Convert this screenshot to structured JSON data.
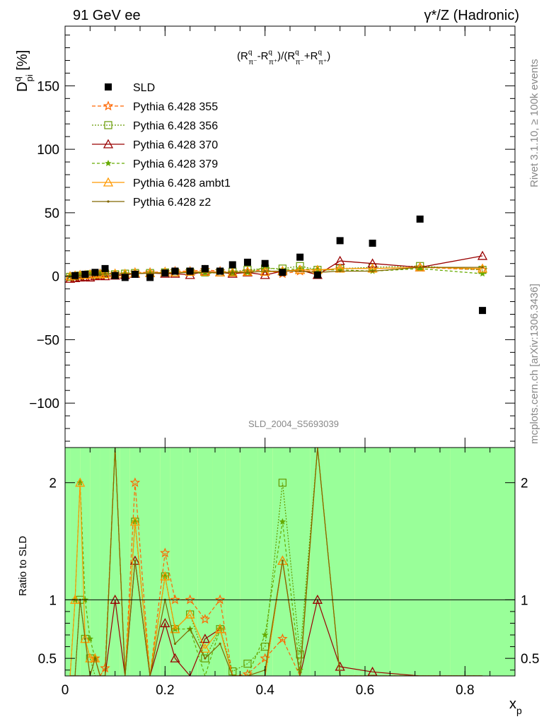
{
  "header": {
    "left": "91 GeV ee",
    "right": "γ*/Z (Hadronic)"
  },
  "side_text": {
    "top": "Rivet 3.1.10, ≥ 100k events",
    "bottom": "mcplots.cern.ch [arXiv:1306.3436]"
  },
  "watermark": "SLD_2004_S5693039",
  "ylabel_base": "D",
  "ylabel_sup": "q",
  "ylabel_sub": "pi",
  "ylabel_unit": " [%]",
  "ratio_ylabel": "Ratio to SLD",
  "xlabel_base": "x",
  "xlabel_sub": "p",
  "formula": {
    "open": "(R",
    "q1": "q",
    "pim": "π⁻",
    "minus": "-R",
    "q2": "q",
    "pip": "π⁺",
    "mid": ")/(R",
    "q3": "q",
    "pim2": "π⁻",
    "plus": "+R",
    "q4": "q",
    "pip2": "π⁺",
    "close": ")"
  },
  "chart_data": {
    "type": "scatter",
    "xlabel": "x_p",
    "ylabel": "D^q_pi [%]",
    "xlim": [
      0,
      0.9
    ],
    "ylim": [
      -135,
      197
    ],
    "x_ticks": [
      0,
      0.2,
      0.4,
      0.6,
      0.8
    ],
    "y_ticks": [
      -100,
      -50,
      0,
      50,
      100,
      150
    ],
    "ratio_ylim": [
      0.35,
      2.3
    ],
    "ratio_ticks": [
      0.5,
      1,
      2
    ],
    "legend_position": "top-left",
    "reference": {
      "name": "SLD",
      "x": [
        0.02,
        0.04,
        0.06,
        0.08,
        0.1,
        0.12,
        0.14,
        0.17,
        0.2,
        0.22,
        0.25,
        0.28,
        0.31,
        0.335,
        0.365,
        0.4,
        0.435,
        0.47,
        0.505,
        0.55,
        0.615,
        0.71,
        0.835
      ],
      "y": [
        0.5,
        1.5,
        3,
        6,
        0.5,
        -1,
        1.5,
        -1,
        2.5,
        4,
        4,
        6,
        4,
        9,
        11,
        10,
        3,
        15,
        1,
        28,
        26,
        45,
        -27
      ]
    },
    "ratio_bands": [
      {
        "x0": 0.0,
        "x1": 0.01,
        "inner": [
          0.35,
          2.3
        ],
        "outer": [
          0.35,
          2.3
        ]
      },
      {
        "x0": 0.01,
        "x1": 0.03,
        "inner": [
          0.35,
          2.3
        ],
        "outer": [
          0.35,
          2.3
        ]
      },
      {
        "x0": 0.03,
        "x1": 0.05,
        "inner": [
          0.35,
          2.3
        ],
        "outer": [
          0.35,
          2.3
        ]
      },
      {
        "x0": 0.05,
        "x1": 0.07,
        "inner": [
          0.35,
          2.3
        ],
        "outer": [
          0.35,
          2.3
        ]
      },
      {
        "x0": 0.07,
        "x1": 0.09,
        "inner": [
          0.35,
          2.3
        ],
        "outer": [
          0.35,
          2.3
        ]
      },
      {
        "x0": 0.09,
        "x1": 0.11,
        "inner": [
          0.35,
          2.3
        ],
        "outer": [
          0.35,
          2.3
        ]
      },
      {
        "x0": 0.11,
        "x1": 0.13,
        "inner": [
          0.35,
          2.3
        ],
        "outer": [
          0.35,
          2.3
        ]
      },
      {
        "x0": 0.13,
        "x1": 0.15,
        "inner": [
          0.35,
          2.3
        ],
        "outer": [
          0.35,
          2.3
        ]
      },
      {
        "x0": 0.15,
        "x1": 0.19,
        "inner": [
          0.35,
          2.3
        ],
        "outer": [
          0.35,
          2.3
        ]
      },
      {
        "x0": 0.19,
        "x1": 0.21,
        "inner": [
          0.35,
          2.3
        ],
        "outer": [
          0.35,
          2.3
        ]
      },
      {
        "x0": 0.21,
        "x1": 0.235,
        "inner": [
          0.35,
          2.3
        ],
        "outer": [
          0.35,
          2.3
        ]
      },
      {
        "x0": 0.235,
        "x1": 0.265,
        "inner": [
          0.35,
          2.3
        ],
        "outer": [
          0.35,
          2.3
        ]
      },
      {
        "x0": 0.265,
        "x1": 0.295,
        "inner": [
          0.35,
          2.3
        ],
        "outer": [
          0.35,
          2.3
        ]
      },
      {
        "x0": 0.295,
        "x1": 0.32,
        "inner": [
          0.35,
          2.3
        ],
        "outer": [
          0.35,
          2.3
        ]
      },
      {
        "x0": 0.32,
        "x1": 0.35,
        "inner": [
          0.35,
          2.3
        ],
        "outer": [
          0.35,
          2.3
        ]
      },
      {
        "x0": 0.35,
        "x1": 0.385,
        "inner": [
          0.35,
          2.3
        ],
        "outer": [
          0.35,
          2.3
        ]
      },
      {
        "x0": 0.385,
        "x1": 0.415,
        "inner": [
          0.35,
          2.3
        ],
        "outer": [
          0.35,
          2.3
        ]
      },
      {
        "x0": 0.415,
        "x1": 0.45,
        "inner": [
          0.35,
          2.3
        ],
        "outer": [
          0.35,
          2.3
        ]
      },
      {
        "x0": 0.45,
        "x1": 0.49,
        "inner": [
          0.35,
          2.3
        ],
        "outer": [
          0.35,
          2.3
        ]
      },
      {
        "x0": 0.49,
        "x1": 0.52,
        "inner": [
          0.35,
          2.3
        ],
        "outer": [
          0.35,
          2.3
        ]
      },
      {
        "x0": 0.52,
        "x1": 0.58,
        "inner": [
          0.35,
          2.3
        ],
        "outer": [
          0.35,
          2.3
        ]
      },
      {
        "x0": 0.58,
        "x1": 0.65,
        "inner": [
          0.35,
          2.3
        ],
        "outer": [
          0.35,
          2.3
        ]
      },
      {
        "x0": 0.65,
        "x1": 0.77,
        "inner": [
          0.35,
          2.3
        ],
        "outer": [
          0.35,
          2.3
        ]
      },
      {
        "x0": 0.77,
        "x1": 0.9,
        "inner": [
          0.35,
          2.3
        ],
        "outer": [
          0.35,
          2.3
        ]
      }
    ],
    "series": [
      {
        "name": "Pythia 6.428 355",
        "color": "#ff6600",
        "marker": "star-open",
        "dash": "5,3",
        "x": [
          0.01,
          0.02,
          0.03,
          0.04,
          0.05,
          0.06,
          0.07,
          0.08,
          0.1,
          0.12,
          0.14,
          0.17,
          0.2,
          0.22,
          0.25,
          0.28,
          0.31,
          0.335,
          0.365,
          0.4,
          0.435,
          0.47,
          0.505,
          0.55,
          0.615,
          0.71,
          0.835
        ],
        "y": [
          -1,
          -0.5,
          0,
          0.5,
          1,
          1.5,
          2,
          2.5,
          2,
          1.5,
          3,
          3,
          3.5,
          4,
          4,
          5,
          4,
          3,
          4,
          5,
          2,
          4,
          4,
          6,
          6,
          7,
          5
        ]
      },
      {
        "name": "Pythia 6.428 356",
        "color": "#669900",
        "marker": "square-open",
        "dash": "2,2",
        "x": [
          0.01,
          0.02,
          0.03,
          0.04,
          0.05,
          0.06,
          0.07,
          0.08,
          0.1,
          0.12,
          0.14,
          0.17,
          0.2,
          0.22,
          0.25,
          0.28,
          0.31,
          0.335,
          0.365,
          0.4,
          0.435,
          0.47,
          0.505,
          0.55,
          0.615,
          0.71,
          0.835
        ],
        "y": [
          -0.5,
          0,
          0.5,
          1,
          1.5,
          1,
          1.5,
          2,
          1.5,
          2,
          2.5,
          2.5,
          3,
          3,
          3.5,
          3,
          3,
          3.5,
          5,
          6,
          6,
          8,
          5,
          6,
          7,
          8,
          5
        ]
      },
      {
        "name": "Pythia 6.428 370",
        "color": "#990000",
        "marker": "triangle-open",
        "dash": "",
        "x": [
          0.01,
          0.02,
          0.03,
          0.04,
          0.05,
          0.06,
          0.07,
          0.08,
          0.1,
          0.12,
          0.14,
          0.17,
          0.2,
          0.22,
          0.25,
          0.28,
          0.31,
          0.335,
          0.365,
          0.4,
          0.435,
          0.47,
          0.505,
          0.55,
          0.615,
          0.71,
          0.835
        ],
        "y": [
          -2,
          -1.5,
          -1,
          -0.5,
          -1,
          0,
          0.5,
          0,
          0.5,
          1,
          2,
          2.5,
          2,
          2,
          1,
          4,
          3,
          2,
          3,
          1,
          4,
          5,
          1,
          12,
          10,
          7,
          16
        ]
      },
      {
        "name": "Pythia 6.428 379",
        "color": "#66aa00",
        "marker": "star-filled",
        "dash": "4,3",
        "x": [
          0.01,
          0.02,
          0.03,
          0.04,
          0.05,
          0.06,
          0.07,
          0.08,
          0.1,
          0.12,
          0.14,
          0.17,
          0.2,
          0.22,
          0.25,
          0.28,
          0.31,
          0.335,
          0.365,
          0.4,
          0.435,
          0.47,
          0.505,
          0.55,
          0.615,
          0.71,
          0.835
        ],
        "y": [
          0,
          0.5,
          1,
          1.5,
          2,
          1.5,
          2,
          2,
          1.5,
          2,
          2.5,
          2.5,
          3,
          3,
          3,
          2,
          3,
          3,
          3,
          7,
          5,
          6,
          5,
          5,
          4,
          6,
          2
        ]
      },
      {
        "name": "Pythia 6.428 ambt1",
        "color": "#ff9900",
        "marker": "triangle-open",
        "dash": "",
        "x": [
          0.01,
          0.02,
          0.03,
          0.04,
          0.05,
          0.06,
          0.07,
          0.08,
          0.1,
          0.12,
          0.14,
          0.17,
          0.2,
          0.22,
          0.25,
          0.28,
          0.31,
          0.335,
          0.365,
          0.4,
          0.435,
          0.47,
          0.505,
          0.55,
          0.615,
          0.71,
          0.835
        ],
        "y": [
          0,
          0.5,
          1,
          1,
          1.5,
          1.5,
          2,
          1.5,
          2,
          2,
          2.5,
          2.5,
          3,
          3,
          3.5,
          3.5,
          3,
          3,
          3.5,
          3.5,
          4,
          5,
          5,
          6,
          6,
          7,
          6
        ]
      },
      {
        "name": "Pythia 6.428 z2",
        "color": "#806600",
        "marker": "dot",
        "dash": "",
        "x": [
          0.01,
          0.02,
          0.03,
          0.04,
          0.05,
          0.06,
          0.07,
          0.08,
          0.1,
          0.12,
          0.14,
          0.17,
          0.2,
          0.22,
          0.25,
          0.28,
          0.31,
          0.335,
          0.365,
          0.4,
          0.435,
          0.47,
          0.505,
          0.55,
          0.615,
          0.71,
          0.835
        ],
        "y": [
          -0.5,
          0,
          0.5,
          1,
          1,
          1.5,
          1.5,
          2,
          1.5,
          2,
          2,
          2.5,
          2.5,
          2.5,
          3,
          3,
          2.5,
          3,
          3,
          4,
          4,
          4,
          3,
          4,
          4,
          7,
          7
        ]
      }
    ]
  }
}
